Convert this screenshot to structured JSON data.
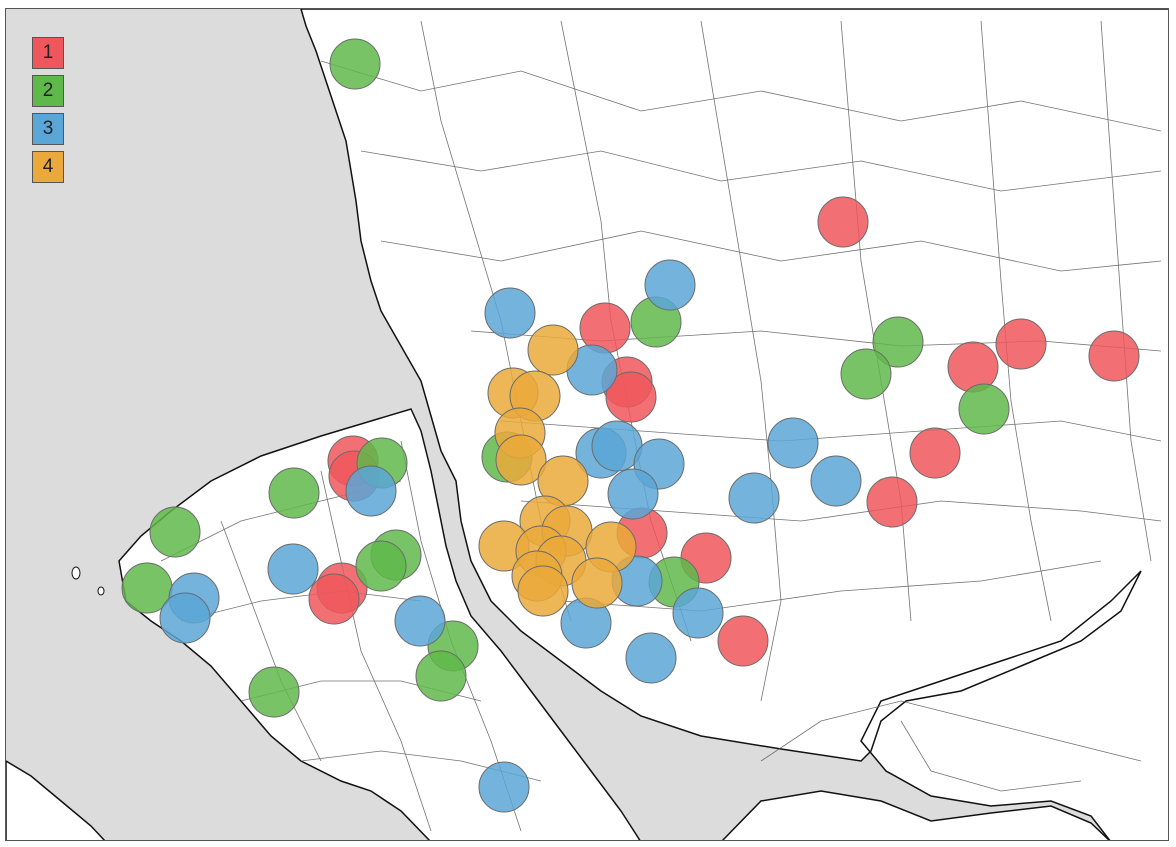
{
  "colors": {
    "water": "#dcdcdc",
    "land": "#ffffff",
    "road": "#5a5a5a",
    "coast": "#111111"
  },
  "legend": [
    {
      "label": "1",
      "color": "#f0575c"
    },
    {
      "label": "2",
      "color": "#5fb84a"
    },
    {
      "label": "3",
      "color": "#5aa6d6"
    },
    {
      "label": "4",
      "color": "#eaa93a"
    }
  ]
}
